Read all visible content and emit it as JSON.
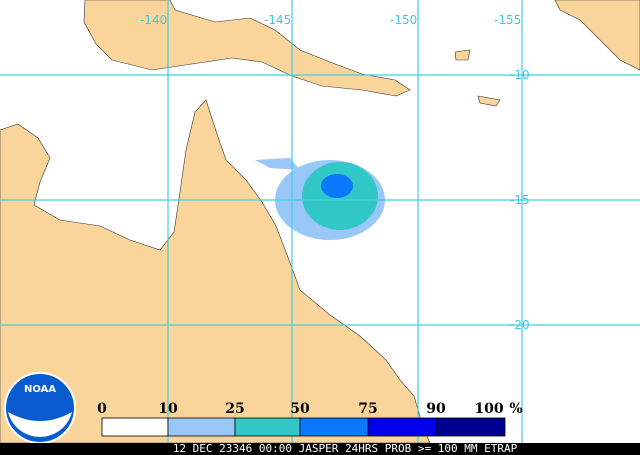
{
  "map": {
    "lon_labels": [
      "-140",
      "-145",
      "-150",
      "-155"
    ],
    "lat_labels": [
      "-10",
      "-15",
      "-20"
    ]
  },
  "legend": {
    "thresholds": [
      0,
      10,
      25,
      50,
      75,
      90,
      100
    ],
    "unit": "%",
    "colors": [
      "#ffffff",
      "#99c8f8",
      "#33c8c8",
      "#0a78ff",
      "#0000ee",
      "#000090"
    ]
  },
  "logo": {
    "text": "NOAA"
  },
  "footer": {
    "caption": "12 DEC 23346 00:00 JASPER 24HRS PROB >= 100 MM ETRAP"
  }
}
